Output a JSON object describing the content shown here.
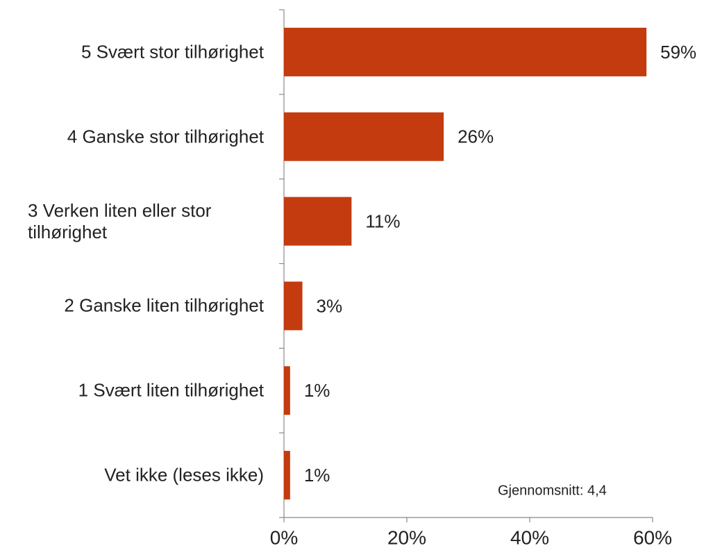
{
  "chart_data": {
    "type": "bar",
    "orientation": "horizontal",
    "categories": [
      "5 Svært stor tilhørighet",
      "4 Ganske stor tilhørighet",
      "3 Verken liten eller stor tilhørighet",
      "2 Ganske liten tilhørighet",
      "1 Svært liten tilhørighet",
      "Vet ikke (leses ikke)"
    ],
    "values": [
      59,
      26,
      11,
      3,
      1,
      1
    ],
    "value_labels": [
      "59%",
      "26%",
      "11%",
      "3%",
      "1%",
      "1%"
    ],
    "color": "#c43b0f",
    "xlim": [
      0,
      60
    ],
    "xticks": [
      {
        "value": 0,
        "label": "0%"
      },
      {
        "value": 20,
        "label": "20%"
      },
      {
        "value": 40,
        "label": "40%"
      },
      {
        "value": 60,
        "label": "60%"
      }
    ],
    "annotation": "Gjennomsnitt: 4,4"
  }
}
